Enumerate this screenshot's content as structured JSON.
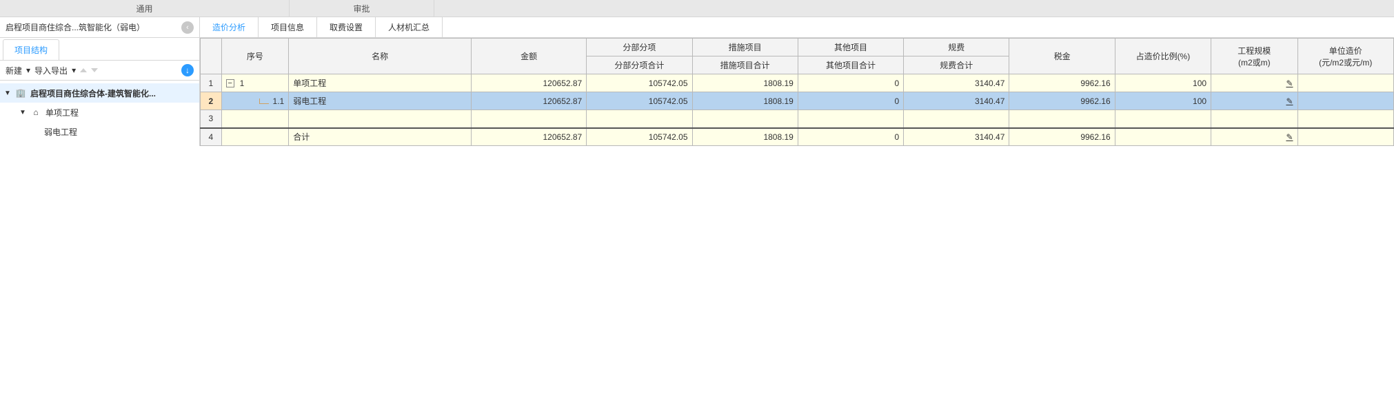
{
  "ribbon": {
    "tab_general": "通用",
    "tab_approve": "审批"
  },
  "crumb": {
    "text": "启程项目商住综合...筑智能化（弱电）",
    "back_icon": "‹"
  },
  "sec_tabs": {
    "price": "造价分析",
    "project": "项目信息",
    "fees": "取费设置",
    "summary": "人材机汇总"
  },
  "sidebar": {
    "tab": "项目结构",
    "toolbar": {
      "new": "新建",
      "io": "导入导出",
      "download_icon": "↓"
    },
    "tree": {
      "root": {
        "icon": "🏢",
        "text": "启程项目商住综合体-建筑智能化..."
      },
      "child": {
        "icon": "⌂",
        "text": "单项工程"
      },
      "leaf": {
        "text": "弱电工程"
      }
    }
  },
  "grid": {
    "header": {
      "serial": "序号",
      "name": "名称",
      "amount": "金额",
      "section": "分部分项",
      "section_sum": "分部分项合计",
      "measure": "措施项目",
      "measure_sum": "措施项目合计",
      "other": "其他项目",
      "other_sum": "其他项目合计",
      "fees": "规费",
      "fees_sum": "规费合计",
      "tax": "税金",
      "ratio": "占造价比例(%)",
      "scale": "工程规模\n(m2或m)",
      "unit": "单位造价\n(元/m2或元/m)"
    },
    "rows": [
      {
        "n": "1",
        "serial": "1",
        "exp": "−",
        "name": "单项工程",
        "amount": "120652.87",
        "section": "105742.05",
        "measure": "1808.19",
        "other": "0",
        "fees": "3140.47",
        "tax": "9962.16",
        "ratio": "100",
        "scale": "",
        "unit": "",
        "pen": "✎",
        "sel": false,
        "child": false
      },
      {
        "n": "2",
        "serial": "1.1",
        "exp": "",
        "name": "弱电工程",
        "amount": "120652.87",
        "section": "105742.05",
        "measure": "1808.19",
        "other": "0",
        "fees": "3140.47",
        "tax": "9962.16",
        "ratio": "100",
        "scale": "",
        "unit": "",
        "pen": "✎",
        "sel": true,
        "child": true
      },
      {
        "n": "3",
        "serial": "",
        "exp": "",
        "name": "",
        "amount": "",
        "section": "",
        "measure": "",
        "other": "",
        "fees": "",
        "tax": "",
        "ratio": "",
        "scale": "",
        "unit": "",
        "pen": "",
        "sel": false,
        "child": false
      },
      {
        "n": "4",
        "serial": "",
        "exp": "",
        "name": "合计",
        "amount": "120652.87",
        "section": "105742.05",
        "measure": "1808.19",
        "other": "0",
        "fees": "3140.47",
        "tax": "9962.16",
        "ratio": "",
        "scale": "",
        "unit": "",
        "pen": "✎",
        "sel": false,
        "child": false
      }
    ]
  },
  "style": {
    "accent": "#2b9bff",
    "row_bg": "#ffffe8",
    "sel_bg": "#b6d3ef",
    "serial_bg": "#ffe6c0",
    "border": "#b8b8b8"
  }
}
